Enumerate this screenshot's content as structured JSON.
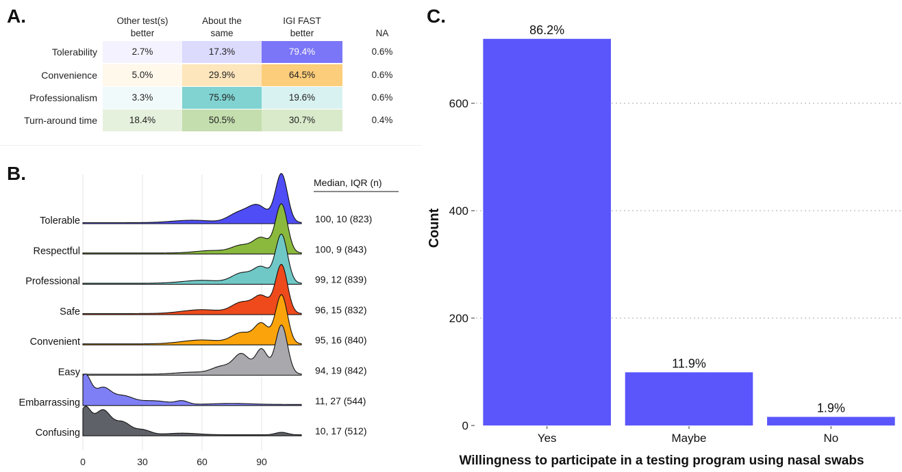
{
  "panel_a": {
    "label": "A.",
    "headers": [
      "Other test(s)\nbetter",
      "About the\nsame",
      "IGI FAST\nbetter",
      "NA"
    ],
    "rows": [
      {
        "label": "Tolerability",
        "values": [
          "2.7%",
          "17.3%",
          "79.4%",
          "0.6%"
        ],
        "fractions": [
          0.027,
          0.173,
          0.794
        ],
        "color": "#5b55f5"
      },
      {
        "label": "Convenience",
        "values": [
          "5.0%",
          "29.9%",
          "64.5%",
          "0.6%"
        ],
        "fractions": [
          0.05,
          0.299,
          0.645
        ],
        "color": "#fbb436"
      },
      {
        "label": "Professionalism",
        "values": [
          "3.3%",
          "75.9%",
          "19.6%",
          "0.6%"
        ],
        "fractions": [
          0.033,
          0.759,
          0.196
        ],
        "color": "#5ac6c3"
      },
      {
        "label": "Turn-around time",
        "values": [
          "18.4%",
          "50.5%",
          "30.7%",
          "0.4%"
        ],
        "fractions": [
          0.184,
          0.505,
          0.307
        ],
        "color": "#8fc066"
      }
    ]
  },
  "panel_b": {
    "label": "B.",
    "stats_header": "Median, IQR (n)",
    "x_ticks": [
      "0",
      "30",
      "60",
      "90"
    ],
    "x_tick_values": [
      0,
      30,
      60,
      90
    ],
    "x_range": [
      0,
      110
    ],
    "series": [
      {
        "name": "Tolerable",
        "stats": "100, 10 (823)",
        "color": "#4f4df5",
        "peaks": [
          [
            100,
            1.0,
            3
          ],
          [
            88,
            0.35,
            5
          ],
          [
            78,
            0.18,
            5
          ],
          [
            55,
            0.05,
            10
          ]
        ]
      },
      {
        "name": "Respectful",
        "stats": "100, 9 (843)",
        "color": "#8ab93e",
        "peaks": [
          [
            100,
            1.0,
            3
          ],
          [
            90,
            0.3,
            4
          ],
          [
            80,
            0.15,
            5
          ],
          [
            65,
            0.05,
            8
          ]
        ]
      },
      {
        "name": "Professional",
        "stats": "99, 12 (839)",
        "color": "#6fc8c6",
        "peaks": [
          [
            100,
            1.0,
            3
          ],
          [
            90,
            0.32,
            4
          ],
          [
            80,
            0.2,
            5
          ],
          [
            60,
            0.06,
            10
          ]
        ]
      },
      {
        "name": "Safe",
        "stats": "96, 15 (832)",
        "color": "#ee4a1c",
        "peaks": [
          [
            100,
            1.0,
            3
          ],
          [
            90,
            0.35,
            4
          ],
          [
            80,
            0.22,
            5
          ],
          [
            60,
            0.08,
            10
          ]
        ]
      },
      {
        "name": "Convenient",
        "stats": "95, 16 (840)",
        "color": "#fba30a",
        "peaks": [
          [
            100,
            1.0,
            3
          ],
          [
            90,
            0.4,
            3.5
          ],
          [
            80,
            0.22,
            5
          ],
          [
            60,
            0.08,
            10
          ]
        ]
      },
      {
        "name": "Easy",
        "stats": "94, 19 (842)",
        "color": "#a9a9ad",
        "peaks": [
          [
            100,
            1.0,
            3
          ],
          [
            90,
            0.5,
            3
          ],
          [
            80,
            0.4,
            4
          ],
          [
            70,
            0.15,
            5
          ],
          [
            55,
            0.04,
            8
          ]
        ]
      },
      {
        "name": "Embarrassing",
        "stats": "11, 27 (544)",
        "color": "#7e7ff5",
        "peaks": [
          [
            1,
            0.55,
            3
          ],
          [
            10,
            0.3,
            4
          ],
          [
            20,
            0.15,
            5
          ],
          [
            35,
            0.07,
            8
          ],
          [
            50,
            0.06,
            3
          ],
          [
            75,
            0.02,
            10
          ]
        ]
      },
      {
        "name": "Confusing",
        "stats": "10, 17 (512)",
        "color": "#5f6168",
        "peaks": [
          [
            1,
            0.65,
            3
          ],
          [
            10,
            0.6,
            4
          ],
          [
            20,
            0.3,
            4
          ],
          [
            30,
            0.12,
            4
          ],
          [
            50,
            0.04,
            8
          ],
          [
            100,
            0.06,
            3
          ]
        ]
      }
    ]
  },
  "panel_c": {
    "label": "C.",
    "chart_data": {
      "type": "bar",
      "categories": [
        "Yes",
        "Maybe",
        "No"
      ],
      "values": [
        720,
        99,
        16
      ],
      "data_labels": [
        "86.2%",
        "11.9%",
        "1.9%"
      ],
      "xlabel": "Willingness to participate in a testing program using nasal swabs",
      "ylabel": "Count",
      "ylim": [
        0,
        735
      ],
      "y_ticks": [
        0,
        200,
        400,
        600
      ],
      "grid": "horizontal dotted",
      "bar_color": "#5a56fb"
    }
  }
}
